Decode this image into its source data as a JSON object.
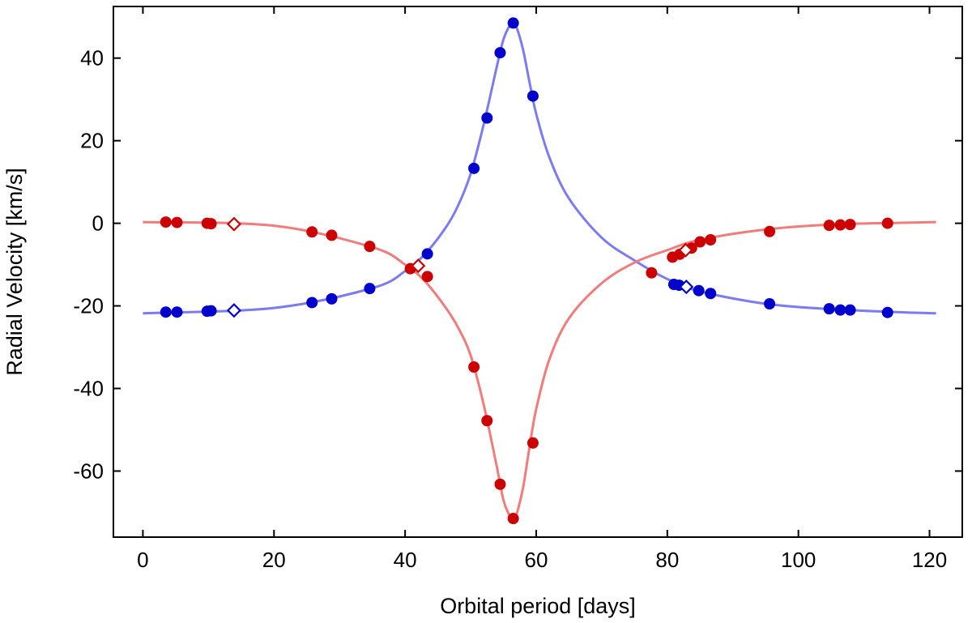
{
  "chart_data": {
    "type": "scatter",
    "title": "",
    "xlabel": "Orbital period [days]",
    "ylabel": "Radial Velocity [km/s]",
    "xlim": [
      -4.5,
      125
    ],
    "ylim": [
      -76,
      52.5
    ],
    "xticks": [
      0,
      20,
      40,
      60,
      80,
      100,
      120
    ],
    "yticks": [
      -60,
      -40,
      -20,
      0,
      20,
      40
    ],
    "grid": false,
    "legend": "none",
    "colors": {
      "blue_points": "#0000cc",
      "red_points": "#cc0000",
      "blue_curve": "#7b7bf2",
      "red_curve": "#f27b7b"
    },
    "series": [
      {
        "name": "blue-component-observed",
        "marker": "filled-circle",
        "color": "#0000cc",
        "points": [
          [
            3.5,
            -21.5
          ],
          [
            5.2,
            -21.5
          ],
          [
            9.8,
            -21.3
          ],
          [
            10.4,
            -21.2
          ],
          [
            25.8,
            -19.2
          ],
          [
            28.8,
            -18.3
          ],
          [
            34.6,
            -15.8
          ],
          [
            43.4,
            -7.4
          ],
          [
            50.5,
            13.3
          ],
          [
            52.5,
            25.5
          ],
          [
            54.5,
            41.3
          ],
          [
            56.5,
            48.5
          ],
          [
            59.5,
            30.8
          ],
          [
            81.0,
            -14.8
          ],
          [
            81.8,
            -15.0
          ],
          [
            84.8,
            -16.3
          ],
          [
            86.6,
            -17.0
          ],
          [
            95.6,
            -19.5
          ],
          [
            104.7,
            -20.7
          ],
          [
            106.4,
            -21.0
          ],
          [
            107.9,
            -21.0
          ],
          [
            113.6,
            -21.6
          ]
        ]
      },
      {
        "name": "red-component-observed",
        "marker": "filled-circle",
        "color": "#cc0000",
        "points": [
          [
            3.5,
            0.3
          ],
          [
            5.2,
            0.2
          ],
          [
            9.8,
            0.0
          ],
          [
            10.4,
            -0.1
          ],
          [
            25.8,
            -2.1
          ],
          [
            28.8,
            -2.9
          ],
          [
            34.6,
            -5.6
          ],
          [
            40.8,
            -11.0
          ],
          [
            43.4,
            -12.9
          ],
          [
            50.5,
            -34.8
          ],
          [
            52.5,
            -47.8
          ],
          [
            54.5,
            -63.2
          ],
          [
            56.5,
            -71.5
          ],
          [
            59.5,
            -53.2
          ],
          [
            77.6,
            -12.0
          ],
          [
            80.8,
            -8.2
          ],
          [
            81.9,
            -7.5
          ],
          [
            83.7,
            -6.0
          ],
          [
            85.0,
            -4.5
          ],
          [
            86.6,
            -4.0
          ],
          [
            95.6,
            -2.0
          ],
          [
            104.7,
            -0.5
          ],
          [
            106.4,
            -0.4
          ],
          [
            107.9,
            -0.3
          ],
          [
            113.6,
            0.0
          ]
        ]
      },
      {
        "name": "blue-component-open",
        "marker": "open-diamond",
        "color": "#0000cc",
        "points": [
          [
            13.9,
            -21.1
          ],
          [
            82.9,
            -15.4
          ]
        ]
      },
      {
        "name": "red-component-open",
        "marker": "open-diamond",
        "color": "#cc0000",
        "points": [
          [
            13.9,
            -0.2
          ],
          [
            42.0,
            -10.3
          ],
          [
            82.8,
            -6.5
          ]
        ]
      },
      {
        "name": "blue-component-model",
        "marker": "line",
        "color": "#7b7bf2",
        "x": [
          0,
          20,
          35,
          40,
          43,
          46,
          48,
          50,
          52,
          54,
          55,
          56,
          56.5,
          57,
          58,
          59,
          60,
          62,
          65,
          70,
          75,
          80,
          85,
          95,
          105,
          115,
          121
        ],
        "y": [
          -21.8,
          -20.5,
          -15.7,
          -11.6,
          -7.5,
          -1.5,
          4.0,
          12.0,
          24.0,
          38.0,
          44.5,
          48.0,
          48.5,
          47.5,
          42.0,
          34.0,
          26.5,
          16.0,
          6.0,
          -3.5,
          -9.0,
          -13.5,
          -16.5,
          -19.5,
          -20.8,
          -21.5,
          -21.8
        ]
      },
      {
        "name": "red-component-model",
        "marker": "line",
        "color": "#f27b7b",
        "x": [
          0,
          20,
          35,
          40,
          43,
          46,
          48,
          50,
          52,
          54,
          55,
          56,
          56.5,
          57,
          58,
          59,
          60,
          62,
          65,
          70,
          75,
          80,
          85,
          95,
          105,
          115,
          121
        ],
        "y": [
          0.3,
          -0.6,
          -5.8,
          -10.0,
          -14.0,
          -20.0,
          -25.0,
          -32.0,
          -44.0,
          -59.0,
          -67.0,
          -71.0,
          -71.8,
          -70.5,
          -64.0,
          -54.0,
          -45.0,
          -33.0,
          -23.0,
          -14.5,
          -9.5,
          -6.5,
          -4.0,
          -1.5,
          -0.3,
          0.1,
          0.3
        ]
      }
    ]
  }
}
